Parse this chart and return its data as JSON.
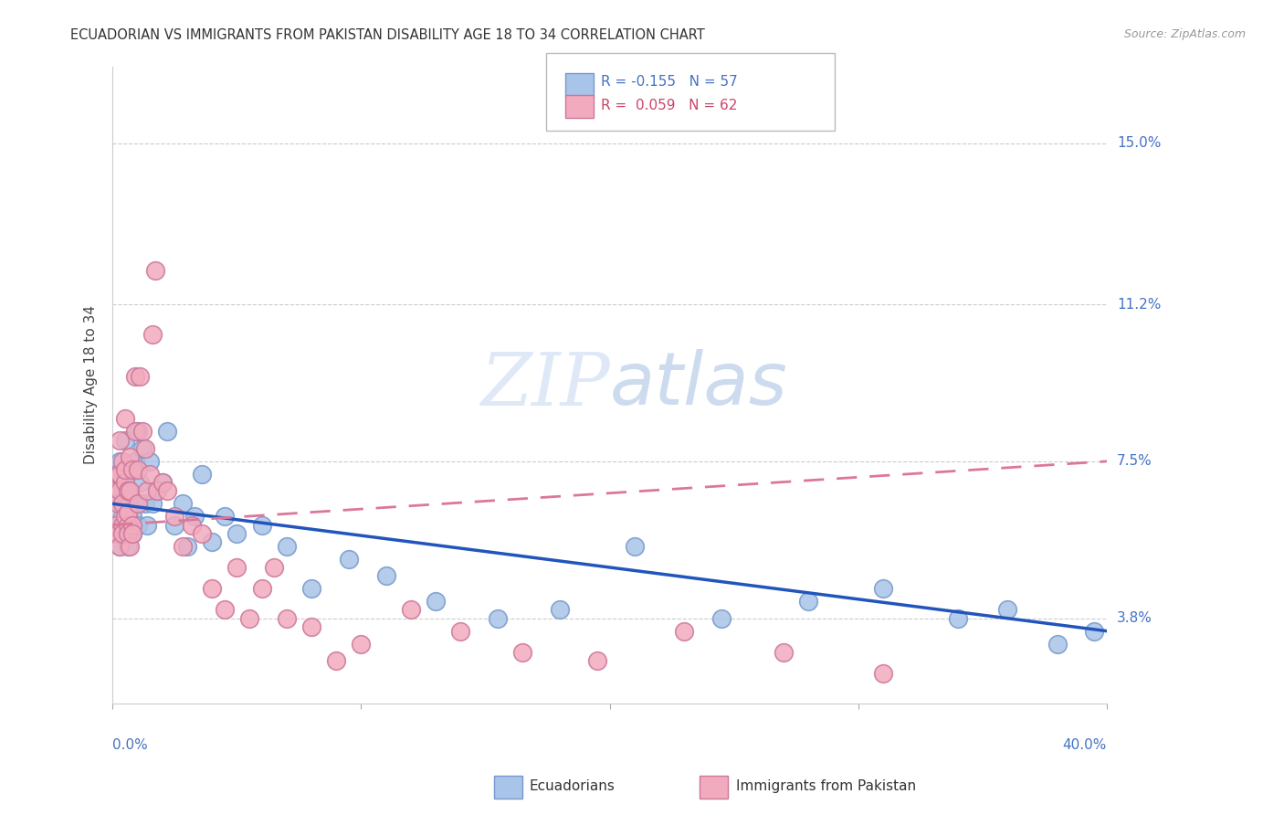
{
  "title": "ECUADORIAN VS IMMIGRANTS FROM PAKISTAN DISABILITY AGE 18 TO 34 CORRELATION CHART",
  "source": "Source: ZipAtlas.com",
  "ylabel": "Disability Age 18 to 34",
  "ytick_labels": [
    "3.8%",
    "7.5%",
    "11.2%",
    "15.0%"
  ],
  "ytick_values": [
    0.038,
    0.075,
    0.112,
    0.15
  ],
  "xlim": [
    0.0,
    0.4
  ],
  "ylim": [
    0.018,
    0.168
  ],
  "legend_blue_r": "-0.155",
  "legend_blue_n": "57",
  "legend_pink_r": "0.059",
  "legend_pink_n": "62",
  "legend_label_blue": "Ecuadorians",
  "legend_label_pink": "Immigrants from Pakistan",
  "blue_color": "#a8c4e8",
  "pink_color": "#f2abbe",
  "blue_line_color": "#2255bb",
  "pink_line_color": "#dd7799",
  "watermark_color": "#d0dff5",
  "blue_scatter_x": [
    0.001,
    0.002,
    0.002,
    0.003,
    0.003,
    0.003,
    0.004,
    0.004,
    0.004,
    0.005,
    0.005,
    0.005,
    0.006,
    0.006,
    0.006,
    0.007,
    0.007,
    0.007,
    0.008,
    0.008,
    0.009,
    0.009,
    0.01,
    0.01,
    0.011,
    0.012,
    0.013,
    0.014,
    0.015,
    0.016,
    0.018,
    0.02,
    0.022,
    0.025,
    0.028,
    0.03,
    0.033,
    0.036,
    0.04,
    0.045,
    0.05,
    0.06,
    0.07,
    0.08,
    0.095,
    0.11,
    0.13,
    0.155,
    0.18,
    0.21,
    0.245,
    0.28,
    0.31,
    0.34,
    0.36,
    0.38,
    0.395
  ],
  "blue_scatter_y": [
    0.068,
    0.072,
    0.06,
    0.065,
    0.055,
    0.075,
    0.07,
    0.058,
    0.062,
    0.08,
    0.06,
    0.065,
    0.068,
    0.055,
    0.072,
    0.06,
    0.064,
    0.068,
    0.062,
    0.058,
    0.075,
    0.065,
    0.082,
    0.06,
    0.07,
    0.078,
    0.065,
    0.06,
    0.075,
    0.065,
    0.068,
    0.07,
    0.082,
    0.06,
    0.065,
    0.055,
    0.062,
    0.072,
    0.056,
    0.062,
    0.058,
    0.06,
    0.055,
    0.045,
    0.052,
    0.048,
    0.042,
    0.038,
    0.04,
    0.055,
    0.038,
    0.042,
    0.045,
    0.038,
    0.04,
    0.032,
    0.035
  ],
  "pink_scatter_x": [
    0.001,
    0.001,
    0.002,
    0.002,
    0.002,
    0.003,
    0.003,
    0.003,
    0.003,
    0.004,
    0.004,
    0.004,
    0.004,
    0.005,
    0.005,
    0.005,
    0.005,
    0.006,
    0.006,
    0.006,
    0.006,
    0.007,
    0.007,
    0.007,
    0.008,
    0.008,
    0.008,
    0.009,
    0.009,
    0.01,
    0.01,
    0.011,
    0.012,
    0.013,
    0.014,
    0.015,
    0.016,
    0.017,
    0.018,
    0.02,
    0.022,
    0.025,
    0.028,
    0.032,
    0.036,
    0.04,
    0.045,
    0.05,
    0.055,
    0.06,
    0.065,
    0.07,
    0.08,
    0.09,
    0.1,
    0.12,
    0.14,
    0.165,
    0.195,
    0.23,
    0.27,
    0.31
  ],
  "pink_scatter_y": [
    0.06,
    0.068,
    0.065,
    0.072,
    0.058,
    0.08,
    0.072,
    0.068,
    0.055,
    0.075,
    0.06,
    0.065,
    0.058,
    0.085,
    0.07,
    0.062,
    0.073,
    0.06,
    0.068,
    0.063,
    0.058,
    0.076,
    0.068,
    0.055,
    0.073,
    0.06,
    0.058,
    0.095,
    0.082,
    0.065,
    0.073,
    0.095,
    0.082,
    0.078,
    0.068,
    0.072,
    0.105,
    0.12,
    0.068,
    0.07,
    0.068,
    0.062,
    0.055,
    0.06,
    0.058,
    0.045,
    0.04,
    0.05,
    0.038,
    0.045,
    0.05,
    0.038,
    0.036,
    0.028,
    0.032,
    0.04,
    0.035,
    0.03,
    0.028,
    0.035,
    0.03,
    0.025
  ]
}
